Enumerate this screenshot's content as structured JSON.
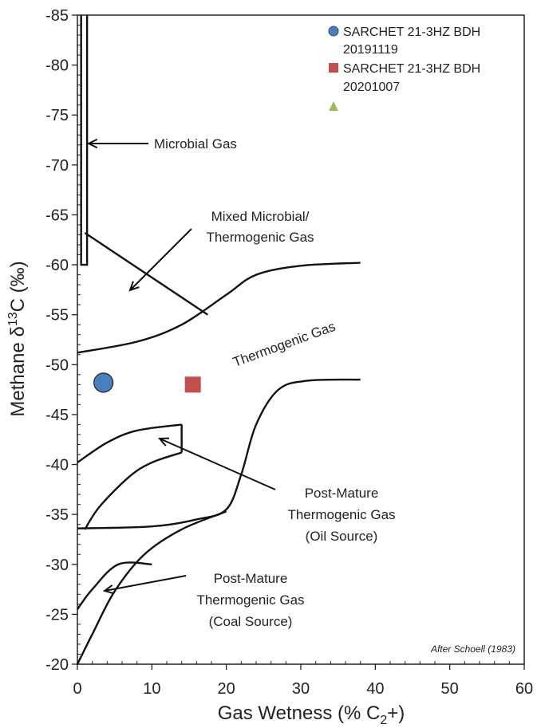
{
  "chart_data": {
    "type": "scatter",
    "title": "",
    "xlabel": "Gas Wetness (% C",
    "xlabel_sub": "2",
    "xlabel_end": "+)",
    "ylabel": "Methane  δ",
    "ylabel_sup": "13",
    "ylabel_end": "C (‰)",
    "xlim": [
      0,
      60
    ],
    "ylim": [
      -20,
      -85
    ],
    "x_ticks": [
      "0",
      "10",
      "20",
      "30",
      "40",
      "50",
      "60"
    ],
    "y_ticks": [
      "-20",
      "-25",
      "-30",
      "-35",
      "-40",
      "-45",
      "-50",
      "-55",
      "-60",
      "-65",
      "-70",
      "-75",
      "-80",
      "-85"
    ],
    "grid": false,
    "legend_position": "top-right",
    "series": [
      {
        "name": "SARCHET 21-3HZ BDH 20191119",
        "marker": "circle",
        "color": "#4a7ebf",
        "x": [
          3.5
        ],
        "y": [
          -48.2
        ]
      },
      {
        "name": "SARCHET 21-3HZ BDH 20201007",
        "marker": "square",
        "color": "#c0504d",
        "x": [
          15.5
        ],
        "y": [
          -48
        ]
      },
      {
        "name": "",
        "marker": "triangle",
        "color": "#9bbb59",
        "x": [],
        "y": []
      }
    ],
    "legend": [
      {
        "line1": "SARCHET 21-3HZ BDH",
        "line2": "20191119",
        "marker": "circle",
        "color": "#4a7ebf"
      },
      {
        "line1": "SARCHET 21-3HZ BDH",
        "line2": "20201007",
        "marker": "square",
        "color": "#c0504d"
      },
      {
        "line1": "",
        "line2": "",
        "marker": "triangle",
        "color": "#9bbb59"
      }
    ],
    "annotations": {
      "microbial": "Microbial Gas",
      "mixed_1": "Mixed Microbial/",
      "mixed_2": "Thermogenic Gas",
      "thermogenic": "Thermogenic Gas",
      "pm_oil_1": "Post-Mature",
      "pm_oil_2": "Thermogenic Gas",
      "pm_oil_3": "(Oil Source)",
      "pm_coal_1": "Post-Mature",
      "pm_coal_2": "Thermogenic Gas",
      "pm_coal_3": "(Coal Source)",
      "credit": "After Schoell (1983)"
    },
    "region_boundaries": {
      "microbial_box": [
        [
          0.5,
          -85
        ],
        [
          0.5,
          -60
        ],
        [
          1.3,
          -60
        ],
        [
          1.3,
          -85
        ]
      ],
      "mixed_line": [
        [
          1,
          -63.2
        ],
        [
          17.5,
          -55
        ]
      ],
      "thermogenic_lower": [
        [
          0,
          -51.2
        ],
        [
          8,
          -52.3
        ],
        [
          14,
          -54
        ],
        [
          20,
          -57
        ],
        [
          24,
          -59
        ],
        [
          30,
          -59.9
        ],
        [
          38,
          -60.2
        ]
      ],
      "thermogenic_upper": [
        [
          0,
          -33.6
        ],
        [
          10,
          -33.8
        ],
        [
          16,
          -34.5
        ],
        [
          20,
          -35.5
        ],
        [
          22,
          -39
        ],
        [
          24,
          -44
        ],
        [
          27,
          -47.5
        ],
        [
          31,
          -48.4
        ],
        [
          38,
          -48.5
        ]
      ],
      "oil_upper": [
        [
          0,
          -40.2
        ],
        [
          4,
          -42.2
        ],
        [
          8,
          -43.4
        ],
        [
          14,
          -44
        ]
      ],
      "oil_right_edge": [
        [
          14,
          -44
        ],
        [
          14,
          -41.2
        ]
      ],
      "oil_lower_arc": [
        [
          14,
          -41.2
        ],
        [
          10,
          -40.2
        ],
        [
          7,
          -38.8
        ],
        [
          3,
          -35.8
        ],
        [
          1,
          -33.5
        ]
      ],
      "coal_upper": [
        [
          0,
          -25.5
        ],
        [
          2,
          -27.5
        ],
        [
          5.5,
          -30
        ],
        [
          10,
          -30
        ]
      ],
      "coal_lower": [
        [
          0,
          -20
        ],
        [
          2,
          -23
        ],
        [
          5,
          -27.3
        ],
        [
          9,
          -31
        ],
        [
          14,
          -33.5
        ],
        [
          20,
          -35.3
        ]
      ]
    }
  }
}
